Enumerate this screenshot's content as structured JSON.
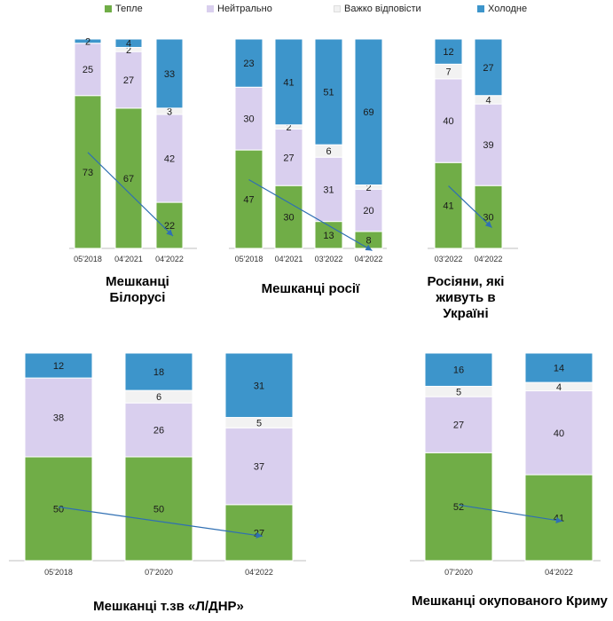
{
  "legend": [
    {
      "label": "Тепле",
      "color": "#70ad47"
    },
    {
      "label": "Нейтрально",
      "color": "#d9cfee"
    },
    {
      "label": "Важко відповісти",
      "color": "#f2f2f2"
    },
    {
      "label": "Холодне",
      "color": "#3d95cb"
    }
  ],
  "chart_data": [
    {
      "type": "bar",
      "stacked": true,
      "group_label": "Мешканці Білорусі",
      "categories": [
        "05'2018",
        "04'2021",
        "04'2022"
      ],
      "series": [
        {
          "name": "Тепле",
          "values": [
            73,
            67,
            22
          ]
        },
        {
          "name": "Нейтрально",
          "values": [
            25,
            27,
            42
          ]
        },
        {
          "name": "Важко відповісти",
          "values": [
            null,
            2,
            3
          ]
        },
        {
          "name": "Холодне",
          "values": [
            2,
            4,
            33
          ]
        }
      ]
    },
    {
      "type": "bar",
      "stacked": true,
      "group_label": "Мешканці росії",
      "categories": [
        "05'2018",
        "04'2021",
        "03'2022",
        "04'2022"
      ],
      "series": [
        {
          "name": "Тепле",
          "values": [
            47,
            30,
            13,
            8
          ]
        },
        {
          "name": "Нейтрально",
          "values": [
            30,
            27,
            31,
            20
          ]
        },
        {
          "name": "Важко відповісти",
          "values": [
            null,
            2,
            6,
            2
          ]
        },
        {
          "name": "Холодне",
          "values": [
            23,
            41,
            51,
            69
          ]
        }
      ]
    },
    {
      "type": "bar",
      "stacked": true,
      "group_label": "Росіяни, які живуть в Україні",
      "categories": [
        "03'2022",
        "04'2022"
      ],
      "series": [
        {
          "name": "Тепле",
          "values": [
            41,
            30
          ]
        },
        {
          "name": "Нейтрально",
          "values": [
            40,
            39
          ]
        },
        {
          "name": "Важко відповісти",
          "values": [
            7,
            4
          ]
        },
        {
          "name": "Холодне",
          "values": [
            12,
            27
          ]
        }
      ]
    },
    {
      "type": "bar",
      "stacked": true,
      "group_label": "Мешканці т.зв «Л/ДНР»",
      "categories": [
        "05'2018",
        "07'2020",
        "04'2022"
      ],
      "series": [
        {
          "name": "Тепле",
          "values": [
            50,
            50,
            27
          ]
        },
        {
          "name": "Нейтрально",
          "values": [
            38,
            26,
            37
          ]
        },
        {
          "name": "Важко відповісти",
          "values": [
            null,
            6,
            5
          ]
        },
        {
          "name": "Холодне",
          "values": [
            12,
            18,
            31
          ]
        }
      ]
    },
    {
      "type": "bar",
      "stacked": true,
      "group_label": "Мешканці окупованого Криму",
      "categories": [
        "07'2020",
        "04'2022"
      ],
      "series": [
        {
          "name": "Тепле",
          "values": [
            52,
            41
          ]
        },
        {
          "name": "Нейтрально",
          "values": [
            27,
            40
          ]
        },
        {
          "name": "Важко відповісти",
          "values": [
            5,
            4
          ]
        },
        {
          "name": "Холодне",
          "values": [
            16,
            14
          ]
        }
      ]
    }
  ]
}
